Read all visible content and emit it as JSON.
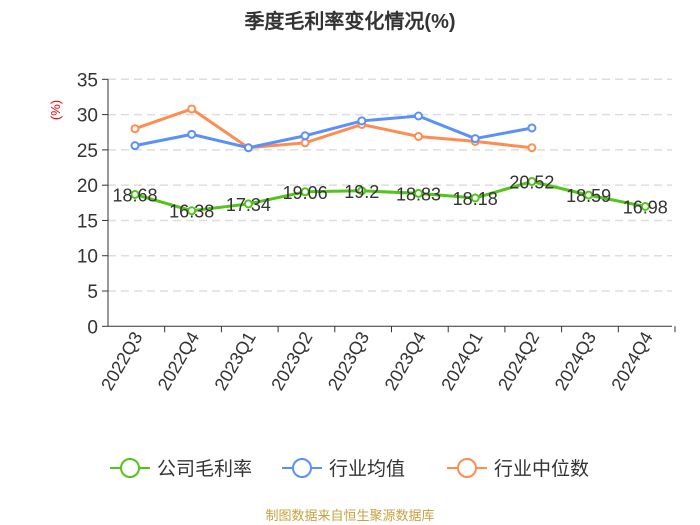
{
  "chart_data": {
    "type": "line",
    "title": "季度毛利率变化情况(%)",
    "ylabel": "(%)",
    "ylim": [
      0,
      35
    ],
    "yticks": [
      0,
      5,
      10,
      15,
      20,
      25,
      30,
      35
    ],
    "grid": true,
    "legend_position": "bottom",
    "categories": [
      "2022Q3",
      "2022Q4",
      "2023Q1",
      "2023Q2",
      "2023Q3",
      "2023Q4",
      "2024Q1",
      "2024Q2",
      "2024Q3",
      "2024Q4"
    ],
    "series": [
      {
        "name": "公司毛利率",
        "color": "#52c41a",
        "labels": true,
        "values": [
          18.68,
          16.38,
          17.34,
          19.06,
          19.2,
          18.83,
          18.18,
          20.52,
          18.59,
          16.98
        ]
      },
      {
        "name": "行业均值",
        "color": "#5b8ff9",
        "values": [
          25.6,
          27.2,
          25.3,
          27.0,
          29.1,
          29.8,
          26.6,
          28.1,
          null,
          null
        ]
      },
      {
        "name": "行业中位数",
        "color": "#ff8c50",
        "values": [
          28.0,
          30.8,
          25.3,
          26.0,
          28.6,
          26.9,
          26.2,
          25.3,
          null,
          null
        ]
      }
    ]
  },
  "footer": "制图数据来自恒生聚源数据库"
}
